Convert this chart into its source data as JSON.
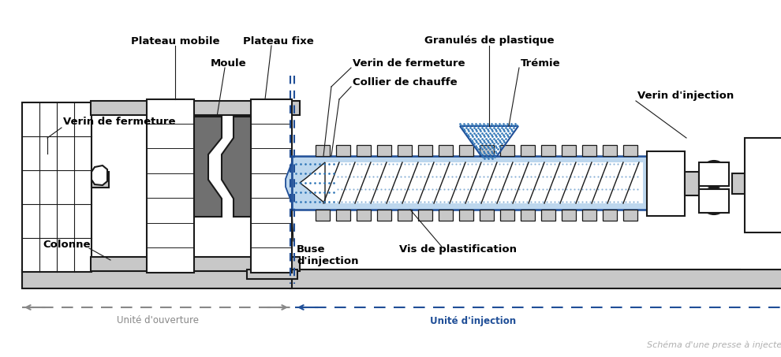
{
  "bg_color": "#ffffff",
  "lc": "#1a1a1a",
  "blue": "#1F4E97",
  "blue_fill": "#BDD7EE",
  "blue_dot": "#2E75B6",
  "gray": "#C8C8C8",
  "dark_gray": "#707070",
  "mid_gray": "#A0A0A0",
  "arrow_gray": "#888888",
  "label_gray": "#B0B0B0",
  "figsize": [
    9.9,
    4.53
  ],
  "dpi": 100,
  "labels": {
    "plateau_mobile": "Plateau mobile",
    "plateau_fixe": "Plateau fixe",
    "moule": "Moule",
    "verin_left": "Verin de fermeture",
    "verin_right": "Verin de fermeture",
    "collier": "Collier de chauffe",
    "granules": "Granulés de plastique",
    "tremie": "Trémie",
    "verin_inj": "Verin d'injection",
    "buse": "Buse\nd'injection",
    "vis": "Vis de plastification",
    "colonne": "Colonne",
    "unite_ouv": "Unité d'ouverture",
    "unite_inj": "Unité d'injection",
    "schema": "Schéma d'une presse à injecter"
  }
}
